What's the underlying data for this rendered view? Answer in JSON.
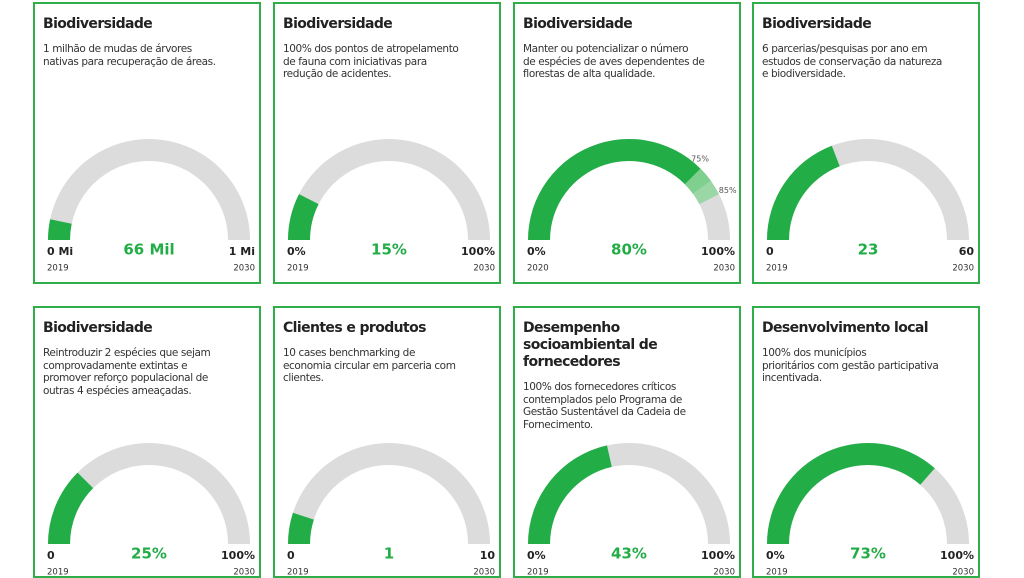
{
  "cards": [
    {
      "title": "Biodiversidade",
      "description": [
        "1 milhão de mudas de árvores",
        "nativas para recuperação de áreas."
      ],
      "min": 0,
      "max": 1000000,
      "value": 66000,
      "min_label": "0 Mi",
      "value_label": "66 Mil",
      "max_label": "1 Mi",
      "start_year": "2019",
      "end_year": "2030"
    },
    {
      "title": "Biodiversidade",
      "description": [
        "100% dos pontos de atropelamento",
        "de fauna com iniciativas para",
        "redução de acidentes."
      ],
      "min": 0,
      "max": 100,
      "value": 15,
      "min_label": "0%",
      "value_label": "15%",
      "max_label": "100%",
      "start_year": "2019",
      "end_year": "2030"
    },
    {
      "title": "Biodiversidade",
      "description": [
        "Manter ou potencializar o número",
        "de espécies de aves dependentes de",
        "florestas de alta qualidade."
      ],
      "min": 0,
      "max": 100,
      "value": 80,
      "min_label": "0%",
      "value_label": "80%",
      "max_label": "100%",
      "start_year": "2020",
      "end_year": "2030",
      "band": [
        {
          "value": 75,
          "label": "75%"
        },
        {
          "value": 85,
          "label": "85%"
        }
      ]
    },
    {
      "title": "Biodiversidade",
      "description": [
        "6 parcerias/pesquisas por ano em",
        "estudos de conservação da natureza",
        "e biodiversidade."
      ],
      "min": 0,
      "max": 60,
      "value": 23,
      "min_label": "0",
      "value_label": "23",
      "max_label": "60",
      "start_year": "2019",
      "end_year": "2030"
    },
    {
      "title": "Biodiversidade",
      "description": [
        "Reintroduzir 2 espécies que sejam",
        "comprovadamente extintas e",
        "promover reforço populacional de",
        "outras 4 espécies ameaçadas."
      ],
      "min": 0,
      "max": 100,
      "value": 25,
      "min_label": "0",
      "value_label": "25%",
      "max_label": "100%",
      "start_year": "2019",
      "end_year": "2030"
    },
    {
      "title": "Clientes e produtos",
      "description": [
        "10 cases benchmarking de",
        "economia circular em parceria com",
        "clientes."
      ],
      "min": 0,
      "max": 10,
      "value": 1,
      "min_label": "0",
      "value_label": "1",
      "max_label": "10",
      "start_year": "2019",
      "end_year": "2030"
    },
    {
      "title": "Desempenho socioambiental de fornecedores",
      "description": [
        "100% dos fornecedores críticos",
        "contemplados pelo Programa de",
        "Gestão Sustentável da Cadeia de",
        "Fornecimento."
      ],
      "min": 0,
      "max": 100,
      "value": 43,
      "min_label": "0%",
      "value_label": "43%",
      "max_label": "100%",
      "start_year": "2019",
      "end_year": "2030"
    },
    {
      "title": "Desenvolvimento local",
      "description": [
        "100% dos municípios",
        "prioritários com gestão participativa",
        "incentivada."
      ],
      "min": 0,
      "max": 100,
      "value": 73,
      "min_label": "0%",
      "value_label": "73%",
      "max_label": "100%",
      "start_year": "2019",
      "end_year": "2030"
    }
  ]
}
